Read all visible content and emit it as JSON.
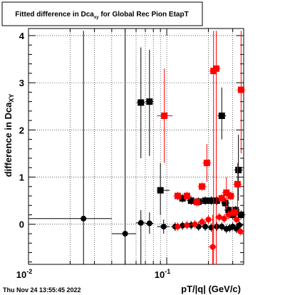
{
  "chart_data": {
    "type": "scatter",
    "title": "Fitted difference in Dca",
    "title_sub": "xy",
    "title_rest": " for Global Rec Pion EtapT",
    "xlabel": "pT/|q| (GeV/c)",
    "ylabel": "difference in Dca",
    "ylabel_sub": "XY",
    "xscale": "log",
    "xlim": [
      0.01,
      0.36
    ],
    "ylim": [
      -0.85,
      4.15
    ],
    "grid": true,
    "x_ticks": [
      {
        "value": 0.01,
        "base": "10",
        "exp": "-2"
      },
      {
        "value": 0.1,
        "base": "10",
        "exp": "-1"
      }
    ],
    "y_ticks": [
      {
        "value": 0,
        "label": "0"
      },
      {
        "value": 1,
        "label": "1"
      },
      {
        "value": 2,
        "label": "2"
      },
      {
        "value": 3,
        "label": "3"
      },
      {
        "value": 4,
        "label": "4"
      }
    ],
    "timestamp": "Thu Nov 24 13:55:45 2022",
    "series": [
      {
        "color": "#000000",
        "marker": "circle",
        "points": [
          {
            "x": 0.025,
            "y": 0.12,
            "xlo": 0.01,
            "xhi": 0.04,
            "ylo": -0.85,
            "yhi": 4.1
          },
          {
            "x": 0.05,
            "y": -0.2,
            "xlo": 0.04,
            "xhi": 0.06,
            "ylo": -0.85,
            "yhi": 4.1
          },
          {
            "x": 0.065,
            "y": 0.03,
            "xlo": 0.06,
            "xhi": 0.07,
            "ylo": -0.85,
            "yhi": 0.3
          },
          {
            "x": 0.075,
            "y": 0.02,
            "xlo": 0.07,
            "xhi": 0.08,
            "ylo": -0.2,
            "yhi": 0.25
          },
          {
            "x": 0.095,
            "y": -0.05,
            "xlo": 0.085,
            "xhi": 0.105,
            "ylo": -0.2,
            "yhi": 0.1
          },
          {
            "x": 0.115,
            "y": -0.05
          },
          {
            "x": 0.13,
            "y": -0.03
          },
          {
            "x": 0.15,
            "y": -0.02
          },
          {
            "x": 0.17,
            "y": -0.05
          },
          {
            "x": 0.19,
            "y": -0.05
          },
          {
            "x": 0.21,
            "y": -0.07
          },
          {
            "x": 0.23,
            "y": -0.05
          },
          {
            "x": 0.25,
            "y": -0.05
          },
          {
            "x": 0.27,
            "y": -0.1
          },
          {
            "x": 0.285,
            "y": -0.08
          },
          {
            "x": 0.3,
            "y": -0.05
          },
          {
            "x": 0.32,
            "y": -0.1
          },
          {
            "x": 0.335,
            "y": -0.02
          }
        ]
      },
      {
        "color": "#000000",
        "marker": "square",
        "points": [
          {
            "x": 0.065,
            "y": 2.58,
            "ylo": 1.4,
            "yhi": 3.75
          },
          {
            "x": 0.075,
            "y": 2.6,
            "ylo": 1.45,
            "yhi": 3.7
          },
          {
            "x": 0.09,
            "y": 0.72,
            "xlo": 0.085,
            "xhi": 0.105,
            "ylo": 0.2,
            "yhi": 1.3
          },
          {
            "x": 0.13,
            "y": 0.55
          },
          {
            "x": 0.15,
            "y": 0.5
          },
          {
            "x": 0.17,
            "y": 0.48
          },
          {
            "x": 0.19,
            "y": 0.5
          },
          {
            "x": 0.21,
            "y": 0.5
          },
          {
            "x": 0.23,
            "y": 0.5
          },
          {
            "x": 0.25,
            "y": 2.3,
            "ylo": 1.8,
            "yhi": 2.9
          },
          {
            "x": 0.265,
            "y": 0.45
          },
          {
            "x": 0.28,
            "y": 0.3
          },
          {
            "x": 0.3,
            "y": 0.2
          },
          {
            "x": 0.315,
            "y": 0.3
          },
          {
            "x": 0.33,
            "y": 1.15,
            "ylo": 0.5,
            "yhi": 1.9
          },
          {
            "x": 0.345,
            "y": 0.2
          }
        ]
      },
      {
        "color": "#ff0000",
        "marker": "circle",
        "points": [
          {
            "x": 0.12,
            "y": -0.05
          },
          {
            "x": 0.14,
            "y": -0.02
          },
          {
            "x": 0.16,
            "y": 0.0
          },
          {
            "x": 0.18,
            "y": 0.05
          },
          {
            "x": 0.2,
            "y": 0.1
          },
          {
            "x": 0.215,
            "y": -0.48,
            "ylo": -0.85,
            "yhi": 0.2
          },
          {
            "x": 0.24,
            "y": 0.15
          },
          {
            "x": 0.26,
            "y": 0.12
          },
          {
            "x": 0.28,
            "y": 0.2
          },
          {
            "x": 0.3,
            "y": 0.25
          },
          {
            "x": 0.32,
            "y": 0.1
          },
          {
            "x": 0.34,
            "y": -0.15
          }
        ]
      },
      {
        "color": "#ff0000",
        "marker": "square",
        "points": [
          {
            "x": 0.096,
            "y": 2.3,
            "xlo": 0.085,
            "xhi": 0.11,
            "ylo": 1.3,
            "yhi": 3.3
          },
          {
            "x": 0.12,
            "y": 0.6
          },
          {
            "x": 0.14,
            "y": 0.6
          },
          {
            "x": 0.165,
            "y": 0.47
          },
          {
            "x": 0.18,
            "y": 0.8
          },
          {
            "x": 0.195,
            "y": 1.3,
            "ylo": 0.9,
            "yhi": 1.7
          },
          {
            "x": 0.218,
            "y": 3.25,
            "ylo": -0.85,
            "yhi": 4.1
          },
          {
            "x": 0.228,
            "y": 3.3,
            "ylo": -0.85,
            "yhi": 4.1
          },
          {
            "x": 0.25,
            "y": 0.55
          },
          {
            "x": 0.27,
            "y": 0.67,
            "ylo": 0.3,
            "yhi": 1.0
          },
          {
            "x": 0.29,
            "y": 0.6
          },
          {
            "x": 0.31,
            "y": 0.25
          },
          {
            "x": 0.325,
            "y": 0.85,
            "ylo": 0.3,
            "yhi": 1.3
          },
          {
            "x": 0.345,
            "y": 2.85,
            "ylo": 1.5,
            "yhi": 4.1
          }
        ]
      }
    ]
  }
}
